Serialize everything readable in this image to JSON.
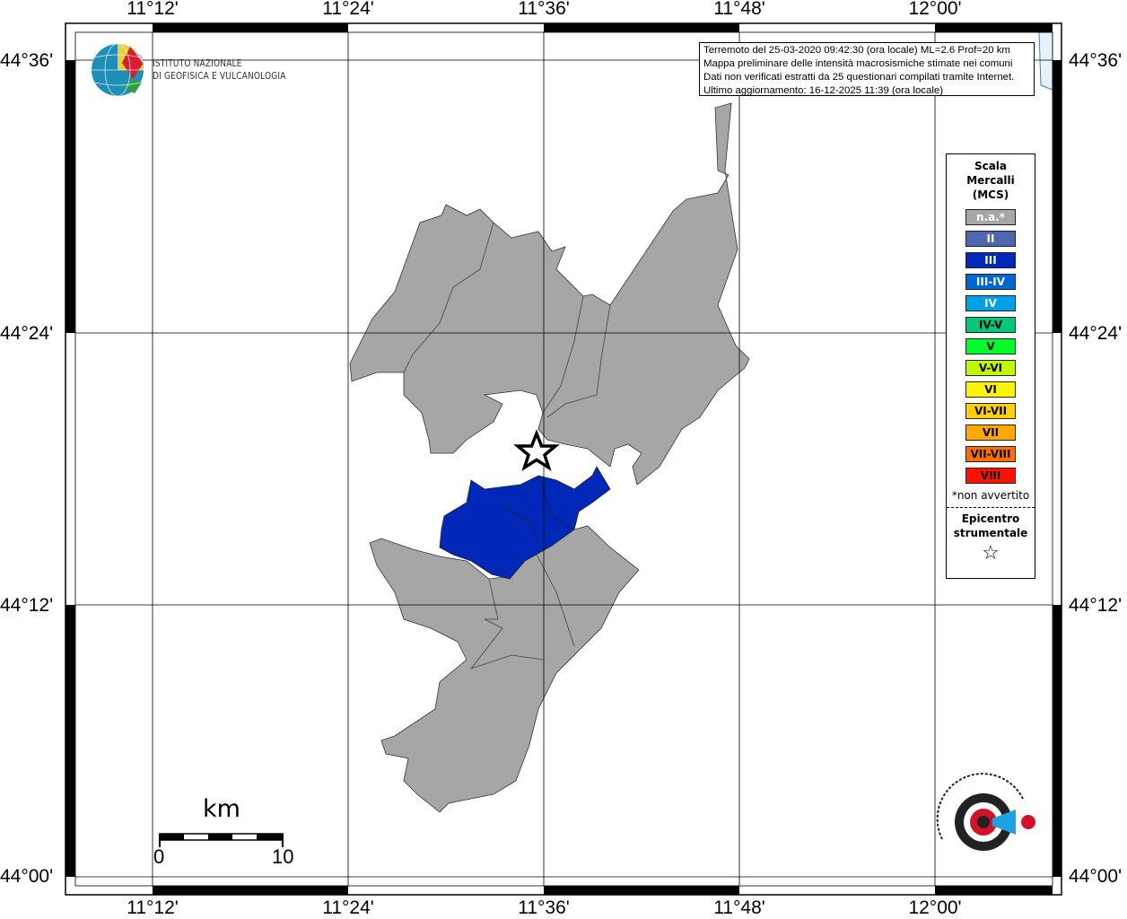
{
  "axes": {
    "lon_labels": [
      "11°12'",
      "11°24'",
      "11°36'",
      "11°48'",
      "12°00'"
    ],
    "lat_labels": [
      "44°36'",
      "44°24'",
      "44°12'",
      "44°00'"
    ]
  },
  "info": {
    "line1": "Terremoto del 25-03-2020 09:42:30 (ora locale) ML=2.6 Prof=20 km",
    "line2": "Mappa preliminare delle intensità macrosismiche stimate nei comuni",
    "line3": "Dati non verificati estratti da 25 questionari compilati tramite Internet.",
    "line4": "Ultimo aggiornamento: 16-12-2025 11:39 (ora locale)"
  },
  "logo_ingv": {
    "line1": "ISTITUTO NAZIONALE",
    "line2": "DI GEOFISICA E VULCANOLOGIA"
  },
  "logo_haisentito": "www.haisentitoilterremoto.it",
  "legend": {
    "title1": "Scala",
    "title2": "Mercalli",
    "title3": "(MCS)",
    "items": [
      {
        "label": "n.a.*",
        "color": "#a6a6a6",
        "text": "#ffffff"
      },
      {
        "label": "II",
        "color": "#4e66ad",
        "text": "#ffffff"
      },
      {
        "label": "III",
        "color": "#0028b8",
        "text": "#ffffff"
      },
      {
        "label": "III-IV",
        "color": "#0066d6",
        "text": "#ffffff"
      },
      {
        "label": "IV",
        "color": "#00a0e6",
        "text": "#ffffff"
      },
      {
        "label": "IV-V",
        "color": "#00c878",
        "text": "#000000"
      },
      {
        "label": "V",
        "color": "#00ff2a",
        "text": "#000000"
      },
      {
        "label": "V-VI",
        "color": "#c0f800",
        "text": "#000000"
      },
      {
        "label": "VI",
        "color": "#fff500",
        "text": "#000000"
      },
      {
        "label": "VI-VII",
        "color": "#ffd000",
        "text": "#000000"
      },
      {
        "label": "VII",
        "color": "#ffa800",
        "text": "#000000"
      },
      {
        "label": "VII-VIII",
        "color": "#ff6e00",
        "text": "#000000"
      },
      {
        "label": "VIII",
        "color": "#ff1000",
        "text": "#000000"
      }
    ],
    "note": "*non avvertito",
    "epicenter1": "Epicentro",
    "epicenter2": "strumentale",
    "epicenter_icon": "star-outline"
  },
  "scalebar": {
    "unit": "km",
    "min": "0",
    "max": "10"
  },
  "areas": [
    {
      "name": "northern-municipalities",
      "intensity": "n.a.*",
      "color": "#a6a6a6"
    },
    {
      "name": "central-municipalities",
      "intensity": "III",
      "color": "#0028b8"
    },
    {
      "name": "southern-municipalities",
      "intensity": "n.a.*",
      "color": "#a6a6a6"
    }
  ],
  "epicenter": {
    "icon": "star-outline"
  }
}
